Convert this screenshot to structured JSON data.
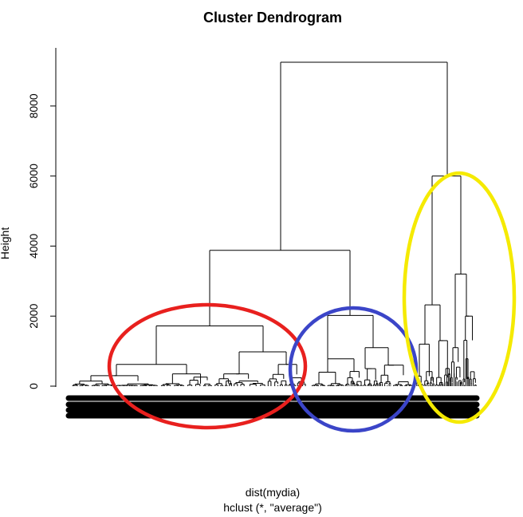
{
  "chart_data": {
    "type": "dendrogram",
    "title": "Cluster Dendrogram",
    "xlabel_line1": "dist(mydia)",
    "xlabel_line2": "hclust (*, \"average\")",
    "ylabel": "Height",
    "ylim": [
      0,
      9300
    ],
    "yticks": [
      0,
      2000,
      4000,
      6000,
      8000
    ],
    "ytick_labels": [
      "0",
      "2000",
      "4000",
      "6000",
      "8000"
    ],
    "root_height": 9250,
    "left_cluster": {
      "height": 3880,
      "children": [
        {
          "height": 1720,
          "children": [
            {
              "height": 620
            },
            {
              "height": 980
            }
          ]
        },
        {
          "height": 2020,
          "children": [
            {
              "height": 780
            },
            {
              "height": 1100
            }
          ]
        }
      ]
    },
    "right_cluster": {
      "height": 6000,
      "children": [
        {
          "height": 2320
        },
        {
          "height": 3200
        }
      ]
    },
    "annotations": [
      {
        "name": "red-ellipse",
        "color": "#e8201e"
      },
      {
        "name": "blue-ellipse",
        "color": "#3b45c8"
      },
      {
        "name": "yellow-ellipse",
        "color": "#f5ea00"
      }
    ],
    "line_color": "#000000"
  }
}
